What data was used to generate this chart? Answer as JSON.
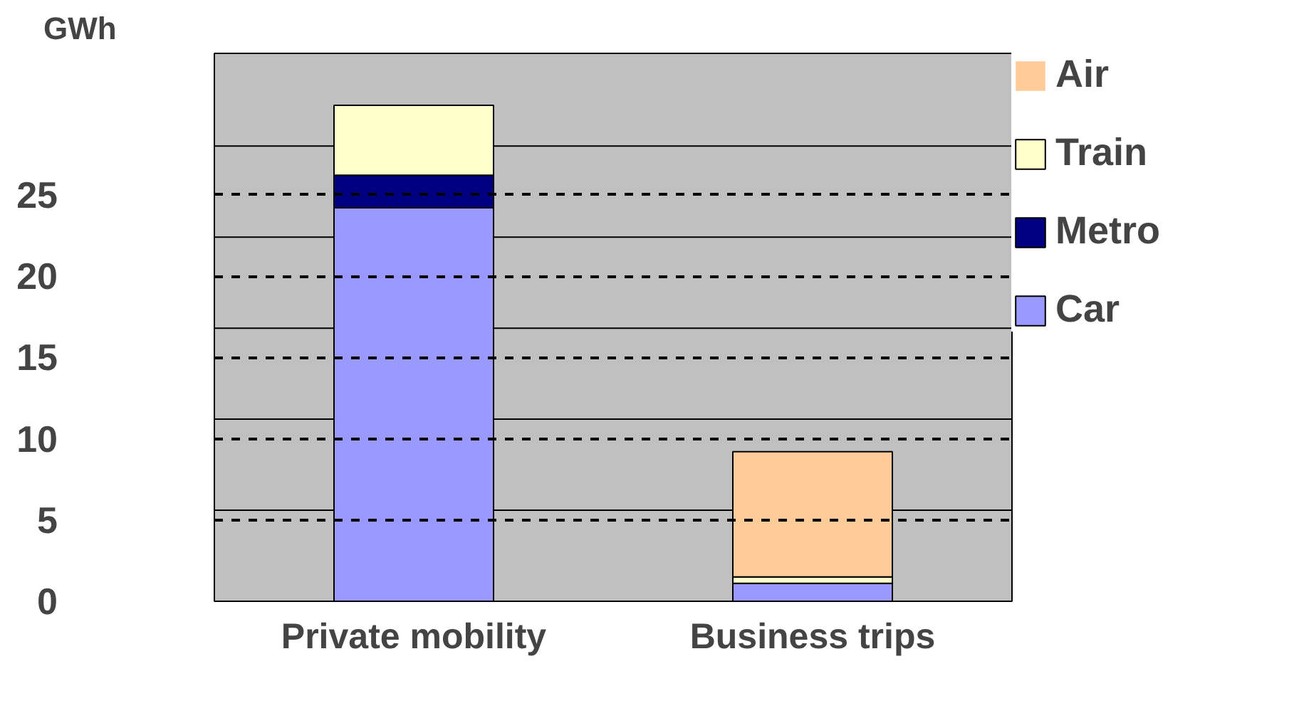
{
  "chart_data": {
    "type": "bar",
    "stacked": true,
    "ylabel": "GWh",
    "categories": [
      "Private mobility",
      "Business trips"
    ],
    "series": [
      {
        "name": "Car",
        "color": "#9999ff",
        "values": [
          24.2,
          1.1
        ]
      },
      {
        "name": "Metro",
        "color": "#000080",
        "values": [
          2.0,
          0
        ]
      },
      {
        "name": "Train",
        "color": "#ffffcc",
        "values": [
          4.3,
          0.4
        ]
      },
      {
        "name": "Air",
        "color": "#ffcc99",
        "values": [
          0,
          7.7
        ]
      }
    ],
    "ylim": [
      0,
      33.7
    ],
    "yticks": [
      0,
      5,
      10,
      15,
      20,
      25
    ],
    "ref_lines": [
      {
        "axis": "y",
        "value": 5.6,
        "label": null,
        "color": "#000000",
        "line_style": "solid"
      },
      {
        "axis": "y",
        "value": 11.2,
        "label": null,
        "color": "#000000",
        "line_style": "solid"
      },
      {
        "axis": "y",
        "value": 16.8,
        "label": null,
        "color": "#000000",
        "line_style": "solid"
      },
      {
        "axis": "y",
        "value": 22.4,
        "label": null,
        "color": "#000000",
        "line_style": "solid"
      },
      {
        "axis": "y",
        "value": 28,
        "label": null,
        "color": "#000000",
        "line_style": "solid"
      }
    ],
    "grid": "y",
    "legend": "right"
  }
}
